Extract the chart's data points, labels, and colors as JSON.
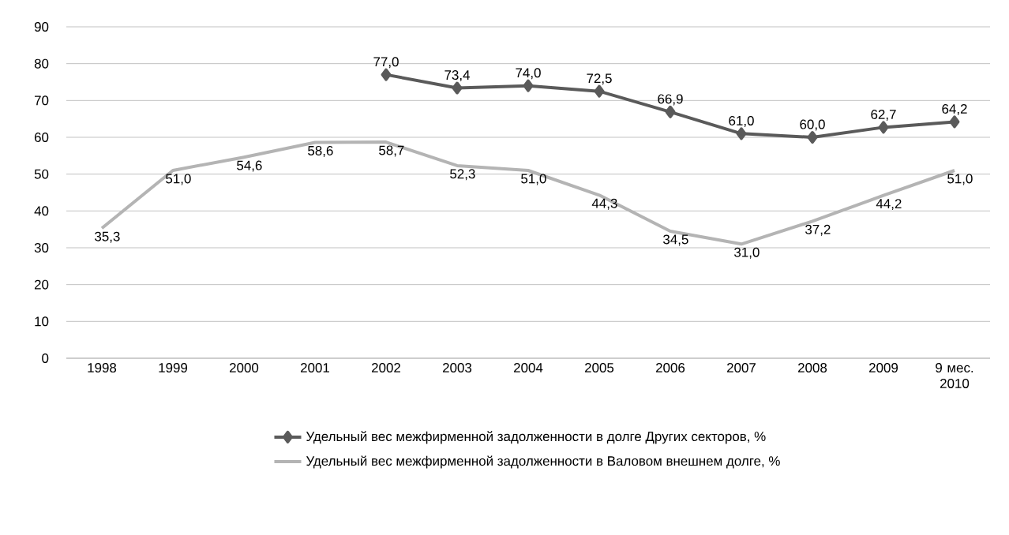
{
  "chart_data": {
    "type": "line",
    "categories": [
      "1998",
      "1999",
      "2000",
      "2001",
      "2002",
      "2003",
      "2004",
      "2005",
      "2006",
      "2007",
      "2008",
      "2009",
      "9 мес. 2010"
    ],
    "series": [
      {
        "name": "Удельный вес межфирменной задолженности в долге Других секторов, %",
        "color": "#5a5a5a",
        "marker": "diamond",
        "values": [
          null,
          null,
          null,
          null,
          77.0,
          73.4,
          74.0,
          72.5,
          66.9,
          61.0,
          60.0,
          62.7,
          64.2
        ],
        "value_labels": [
          null,
          null,
          null,
          null,
          "77,0",
          "73,4",
          "74,0",
          "72,5",
          "66,9",
          "61,0",
          "60,0",
          "62,7",
          "64,2"
        ]
      },
      {
        "name": "Удельный вес межфирменной задолженности в Валовом внешнем долге, %",
        "color": "#b4b4b4",
        "marker": "none",
        "values": [
          35.3,
          51.0,
          54.6,
          58.6,
          58.7,
          52.3,
          51.0,
          44.3,
          34.5,
          31.0,
          37.2,
          44.2,
          51.0
        ],
        "value_labels": [
          "35,3",
          "51,0",
          "54,6",
          "58,6",
          "58,7",
          "52,3",
          "51,0",
          "44,3",
          "34,5",
          "31,0",
          "37,2",
          "44,2",
          "51,0"
        ]
      }
    ],
    "ylim": [
      0,
      90
    ],
    "yticks": [
      0,
      10,
      20,
      30,
      40,
      50,
      60,
      70,
      80,
      90
    ],
    "grid": "y",
    "legend": "bottom",
    "line_style": "solid"
  }
}
